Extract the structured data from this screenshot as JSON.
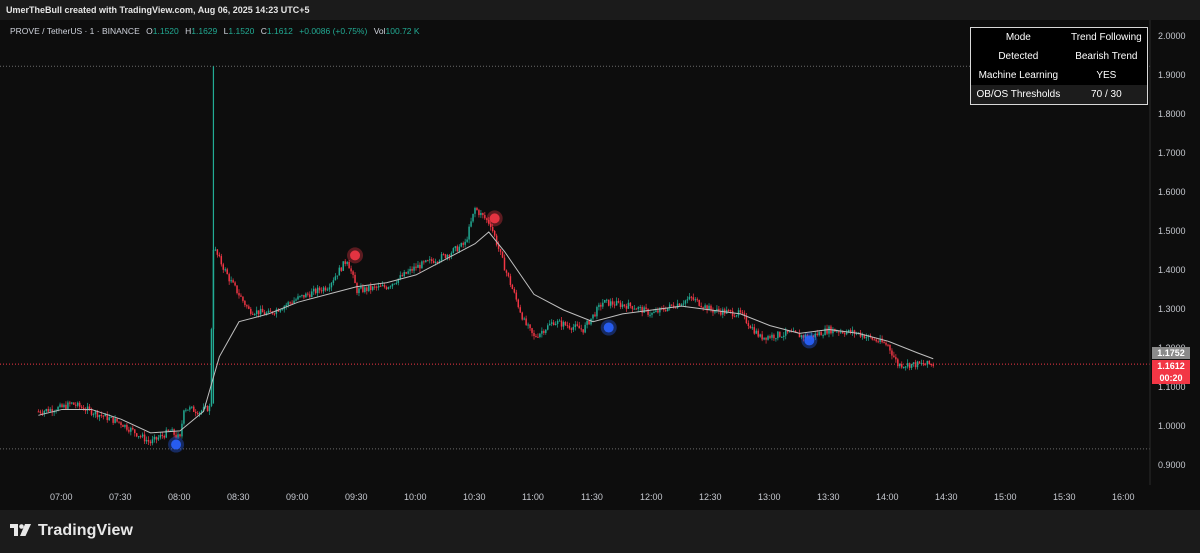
{
  "header": {
    "attribution": "UmerTheBull created with TradingView.com, Aug 06, 2025 14:23 UTC+5"
  },
  "legend": {
    "symbol": "PROVE / TetherUS · 1 · BINANCE",
    "open_label": "O",
    "open": "1.1520",
    "high_label": "H",
    "high": "1.1629",
    "low_label": "L",
    "low": "1.1520",
    "close_label": "C",
    "close": "1.1612",
    "change": "+0.0086 (+0.75%)",
    "vol_label": "Vol",
    "vol": "100.72 K"
  },
  "info_table": [
    {
      "key": "Mode",
      "value": "Trend Following"
    },
    {
      "key": "Detected",
      "value": "Bearish Trend"
    },
    {
      "key": "Machine Learning",
      "value": "YES"
    },
    {
      "key": "OB/OS Thresholds",
      "value": "70 / 30"
    }
  ],
  "price_tags": {
    "ma_value": "1.1752",
    "last_price": "1.1612",
    "countdown": "00:20"
  },
  "footer": {
    "brand": "TradingView"
  },
  "colors": {
    "up": "#22ab94",
    "down": "#f23645",
    "ma": "#bfbfbf",
    "bull_signal": "#2962ff",
    "bear_signal": "#f23645"
  },
  "chart_data": {
    "type": "candlestick",
    "y_ticks": [
      "2.0000",
      "1.9000",
      "1.8000",
      "1.7000",
      "1.6000",
      "1.5000",
      "1.4000",
      "1.3000",
      "1.2000",
      "1.1000",
      "1.0000",
      "0.9000"
    ],
    "x_ticks": [
      "07:00",
      "07:30",
      "08:00",
      "08:30",
      "09:00",
      "09:30",
      "10:00",
      "10:30",
      "11:00",
      "11:30",
      "12:00",
      "12:30",
      "13:00",
      "13:30",
      "14:00",
      "14:30",
      "15:00",
      "15:30",
      "16:00"
    ],
    "ylim": [
      0.88,
      2.02
    ],
    "hlines": [
      1.925,
      0.944
    ],
    "current_price_line": 1.1612,
    "ma_series": [
      {
        "t": "06:48",
        "v": 1.03
      },
      {
        "t": "07:00",
        "v": 1.045
      },
      {
        "t": "07:15",
        "v": 1.045
      },
      {
        "t": "07:30",
        "v": 1.02
      },
      {
        "t": "07:45",
        "v": 0.985
      },
      {
        "t": "08:00",
        "v": 0.99
      },
      {
        "t": "08:12",
        "v": 1.04
      },
      {
        "t": "08:20",
        "v": 1.18
      },
      {
        "t": "08:30",
        "v": 1.27
      },
      {
        "t": "08:45",
        "v": 1.29
      },
      {
        "t": "09:00",
        "v": 1.32
      },
      {
        "t": "09:15",
        "v": 1.34
      },
      {
        "t": "09:30",
        "v": 1.36
      },
      {
        "t": "09:45",
        "v": 1.37
      },
      {
        "t": "10:00",
        "v": 1.39
      },
      {
        "t": "10:15",
        "v": 1.43
      },
      {
        "t": "10:30",
        "v": 1.47
      },
      {
        "t": "10:37",
        "v": 1.5
      },
      {
        "t": "10:45",
        "v": 1.45
      },
      {
        "t": "11:00",
        "v": 1.34
      },
      {
        "t": "11:15",
        "v": 1.3
      },
      {
        "t": "11:30",
        "v": 1.27
      },
      {
        "t": "11:45",
        "v": 1.29
      },
      {
        "t": "12:00",
        "v": 1.3
      },
      {
        "t": "12:15",
        "v": 1.31
      },
      {
        "t": "12:30",
        "v": 1.3
      },
      {
        "t": "12:45",
        "v": 1.29
      },
      {
        "t": "13:00",
        "v": 1.26
      },
      {
        "t": "13:15",
        "v": 1.24
      },
      {
        "t": "13:30",
        "v": 1.25
      },
      {
        "t": "13:45",
        "v": 1.24
      },
      {
        "t": "14:00",
        "v": 1.22
      },
      {
        "t": "14:15",
        "v": 1.19
      },
      {
        "t": "14:23",
        "v": 1.175
      }
    ],
    "price_anchors": [
      {
        "t": "06:48",
        "v": 1.04
      },
      {
        "t": "07:00",
        "v": 1.05
      },
      {
        "t": "07:05",
        "v": 1.06
      },
      {
        "t": "07:15",
        "v": 1.04
      },
      {
        "t": "07:30",
        "v": 1.01
      },
      {
        "t": "07:45",
        "v": 0.96
      },
      {
        "t": "07:55",
        "v": 0.99
      },
      {
        "t": "08:00",
        "v": 0.97
      },
      {
        "t": "08:02",
        "v": 1.05
      },
      {
        "t": "08:10",
        "v": 1.04
      },
      {
        "t": "08:15",
        "v": 1.05
      },
      {
        "t": "08:17",
        "v": 1.46
      },
      {
        "t": "08:25",
        "v": 1.38
      },
      {
        "t": "08:35",
        "v": 1.3
      },
      {
        "t": "08:45",
        "v": 1.29
      },
      {
        "t": "09:00",
        "v": 1.33
      },
      {
        "t": "09:15",
        "v": 1.36
      },
      {
        "t": "09:25",
        "v": 1.43
      },
      {
        "t": "09:30",
        "v": 1.35
      },
      {
        "t": "09:45",
        "v": 1.36
      },
      {
        "t": "10:00",
        "v": 1.41
      },
      {
        "t": "10:15",
        "v": 1.44
      },
      {
        "t": "10:25",
        "v": 1.47
      },
      {
        "t": "10:30",
        "v": 1.56
      },
      {
        "t": "10:38",
        "v": 1.52
      },
      {
        "t": "10:45",
        "v": 1.41
      },
      {
        "t": "10:55",
        "v": 1.27
      },
      {
        "t": "11:00",
        "v": 1.23
      },
      {
        "t": "11:10",
        "v": 1.27
      },
      {
        "t": "11:25",
        "v": 1.25
      },
      {
        "t": "11:35",
        "v": 1.32
      },
      {
        "t": "11:50",
        "v": 1.31
      },
      {
        "t": "12:00",
        "v": 1.29
      },
      {
        "t": "12:15",
        "v": 1.32
      },
      {
        "t": "12:20",
        "v": 1.33
      },
      {
        "t": "12:30",
        "v": 1.3
      },
      {
        "t": "12:45",
        "v": 1.29
      },
      {
        "t": "12:55",
        "v": 1.23
      },
      {
        "t": "13:10",
        "v": 1.24
      },
      {
        "t": "13:20",
        "v": 1.23
      },
      {
        "t": "13:30",
        "v": 1.25
      },
      {
        "t": "13:45",
        "v": 1.24
      },
      {
        "t": "14:00",
        "v": 1.21
      },
      {
        "t": "14:05",
        "v": 1.16
      },
      {
        "t": "14:10",
        "v": 1.16
      },
      {
        "t": "14:23",
        "v": 1.161
      }
    ],
    "signals": [
      {
        "t": "07:58",
        "v": 0.955,
        "type": "bullish"
      },
      {
        "t": "09:29",
        "v": 1.44,
        "type": "bearish"
      },
      {
        "t": "10:40",
        "v": 1.535,
        "type": "bearish"
      },
      {
        "t": "11:38",
        "v": 1.255,
        "type": "bullish"
      },
      {
        "t": "13:20",
        "v": 1.222,
        "type": "bullish"
      }
    ]
  }
}
